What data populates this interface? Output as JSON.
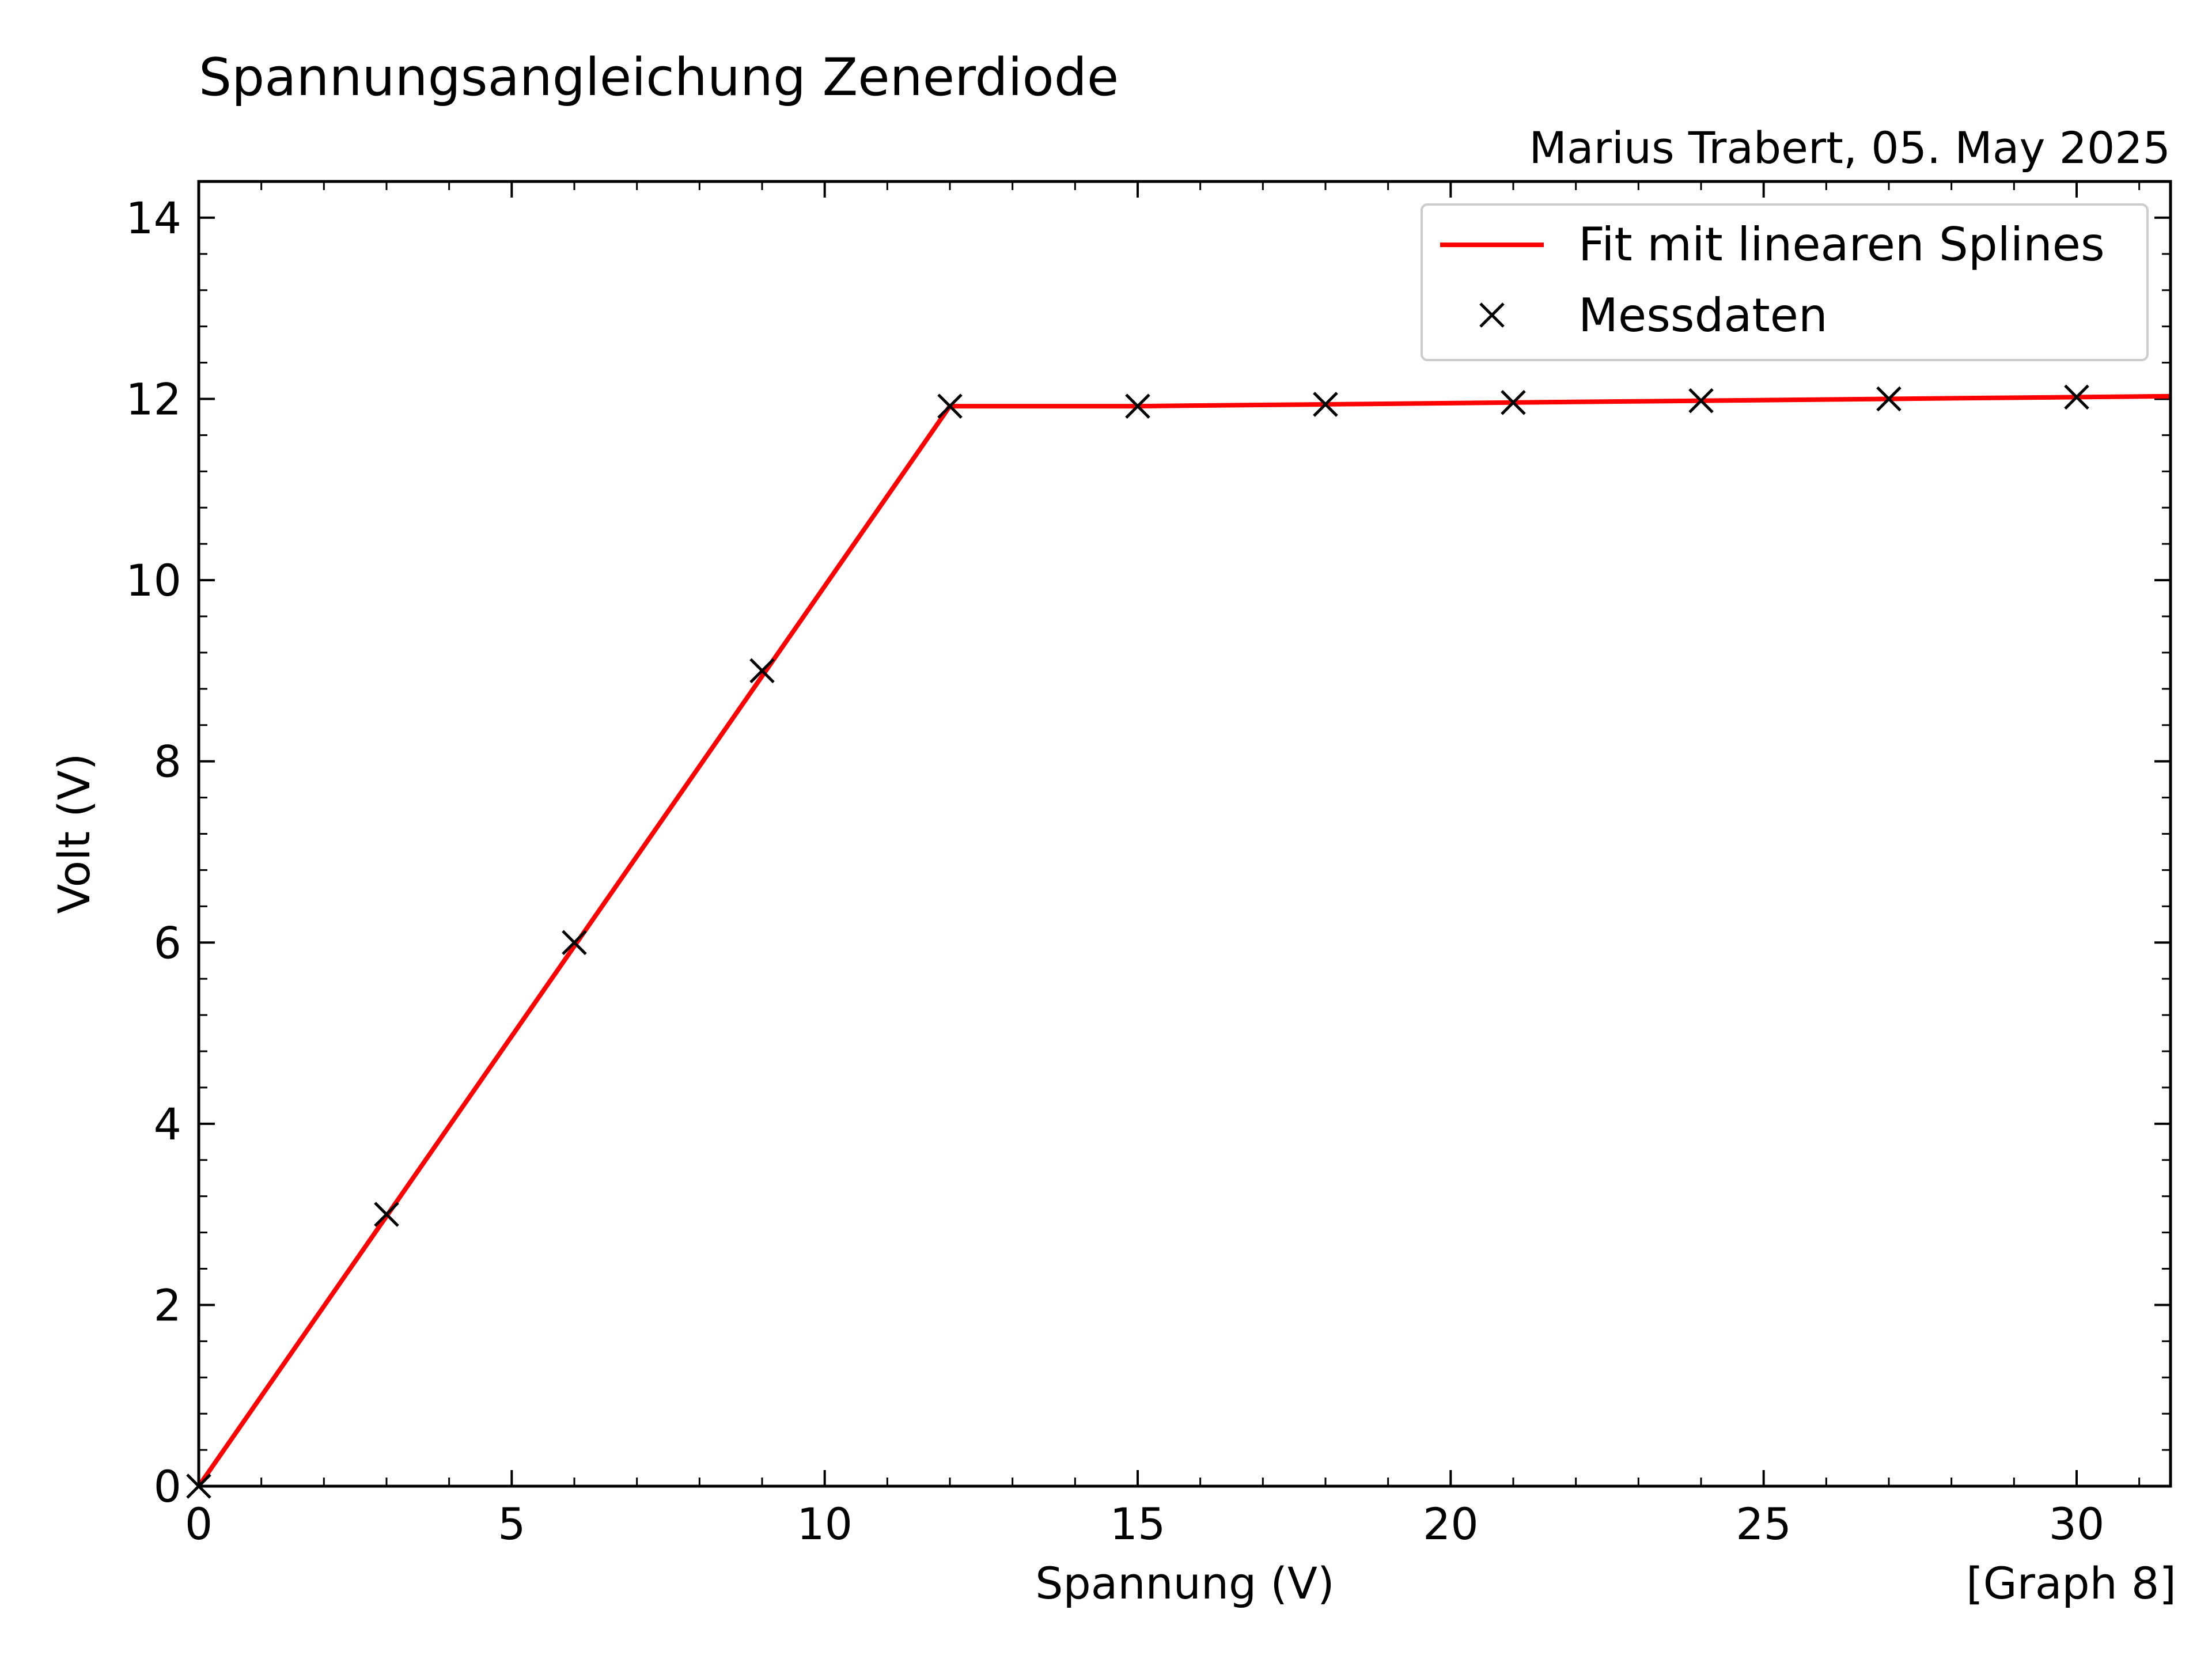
{
  "chart_data": {
    "type": "line",
    "title": "Spannungsangleichung Zenerdiode",
    "subtitle": "Marius Trabert, 05. May 2025",
    "xlabel": "Spannung (V)",
    "ylabel": "Volt (V)",
    "footer": "[Graph 8]",
    "xlim": [
      0,
      31.5
    ],
    "ylim": [
      0,
      14.4
    ],
    "xticks": [
      0,
      5,
      10,
      15,
      20,
      25,
      30
    ],
    "yticks": [
      0,
      2,
      4,
      6,
      8,
      10,
      12,
      14
    ],
    "grid": false,
    "legend_position": "top-right",
    "series": [
      {
        "name": "Fit mit linearen Splines",
        "kind": "line",
        "color": "#ff0000",
        "x": [
          0,
          12,
          15,
          18,
          21,
          24,
          27,
          30,
          31.5
        ],
        "y": [
          0,
          11.92,
          11.92,
          11.94,
          11.96,
          11.98,
          12.0,
          12.02,
          12.03
        ]
      },
      {
        "name": "Messdaten",
        "kind": "marker",
        "marker": "x",
        "color": "#000000",
        "x": [
          0,
          3,
          6,
          9,
          12,
          15,
          18,
          21,
          24,
          27,
          30
        ],
        "y": [
          0,
          3.0,
          6.0,
          9.0,
          11.92,
          11.92,
          11.94,
          11.96,
          11.98,
          12.0,
          12.02
        ]
      }
    ]
  }
}
